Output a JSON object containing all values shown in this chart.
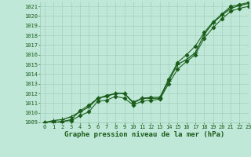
{
  "title": "Graphe pression niveau de la mer (hPa)",
  "xlim": [
    -0.5,
    23
  ],
  "ylim": [
    1009,
    1021.5
  ],
  "xticks": [
    0,
    1,
    2,
    3,
    4,
    5,
    6,
    7,
    8,
    9,
    10,
    11,
    12,
    13,
    14,
    15,
    16,
    17,
    18,
    19,
    20,
    21,
    22,
    23
  ],
  "yticks": [
    1009,
    1010,
    1011,
    1012,
    1013,
    1014,
    1015,
    1016,
    1017,
    1018,
    1019,
    1020,
    1021
  ],
  "background_color": "#c0e8d8",
  "grid_color": "#99ccb3",
  "line_color": "#1a5c1a",
  "series1": [
    1009.0,
    1009.2,
    1009.3,
    1009.6,
    1010.1,
    1010.6,
    1011.5,
    1011.7,
    1012.0,
    1012.0,
    1011.0,
    1011.5,
    1011.5,
    1011.5,
    1013.3,
    1015.0,
    1015.5,
    1016.2,
    1018.1,
    1019.3,
    1020.1,
    1020.8,
    1021.1,
    1021.3
  ],
  "series2": [
    1009.0,
    1009.0,
    1009.1,
    1009.3,
    1010.2,
    1010.8,
    1011.5,
    1011.8,
    1012.0,
    1012.0,
    1011.1,
    1011.5,
    1011.6,
    1011.6,
    1013.5,
    1015.2,
    1016.0,
    1016.9,
    1018.3,
    1019.4,
    1020.2,
    1021.0,
    1021.2,
    1021.4
  ],
  "series3": [
    1009.0,
    1009.0,
    1009.1,
    1009.2,
    1009.7,
    1010.1,
    1011.2,
    1011.3,
    1011.7,
    1011.5,
    1010.8,
    1011.2,
    1011.3,
    1011.4,
    1013.0,
    1014.5,
    1015.3,
    1016.0,
    1017.7,
    1018.8,
    1019.7,
    1020.5,
    1020.8,
    1021.0
  ],
  "title_fontsize": 6.5,
  "tick_fontsize": 5.0,
  "line_width": 0.8
}
